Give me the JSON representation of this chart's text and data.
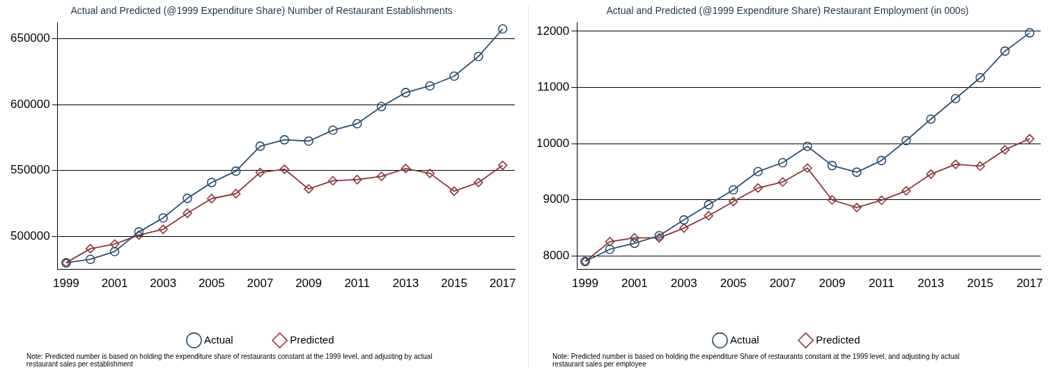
{
  "chart_data": [
    {
      "type": "line",
      "title": "Actual and Predicted (@1999 Expenditure Share) Number of Restaurant Establishments",
      "x": [
        1999,
        2000,
        2001,
        2002,
        2003,
        2004,
        2005,
        2006,
        2007,
        2008,
        2009,
        2010,
        2011,
        2012,
        2013,
        2014,
        2015,
        2016,
        2017
      ],
      "xlim": [
        1998.65,
        2017.5
      ],
      "xticks": [
        1999,
        2001,
        2003,
        2005,
        2007,
        2009,
        2011,
        2013,
        2015,
        2017
      ],
      "ylim": [
        475000,
        662000
      ],
      "yticks": [
        500000,
        550000,
        600000,
        650000
      ],
      "grid": "y",
      "legend": "bottom",
      "line_style": "solid",
      "series": [
        {
          "name": "Actual",
          "color": "#2b5073",
          "marker": "circle",
          "values": [
            480000,
            482600,
            488500,
            503400,
            514000,
            528900,
            540900,
            549500,
            568400,
            573300,
            572300,
            580600,
            585500,
            598500,
            609100,
            614200,
            621600,
            636500,
            657400
          ]
        },
        {
          "name": "Predicted",
          "color": "#90353b",
          "marker": "diamond",
          "values": [
            480000,
            490700,
            494100,
            501000,
            505400,
            517600,
            528700,
            532400,
            548500,
            551000,
            536000,
            542200,
            543100,
            545600,
            551500,
            547800,
            534300,
            540900,
            553900
          ]
        }
      ],
      "annotations": [
        "Note: Predicted number is based on holding the expenditure share of restaurants constant at the 1999 level, and adjusting by actual restaurant sales per establishment"
      ]
    },
    {
      "type": "line",
      "title": "Actual and Predicted (@1999 Expenditure Share) Restaurant Employment (in 000s)",
      "x": [
        1999,
        2000,
        2001,
        2002,
        2003,
        2004,
        2005,
        2006,
        2007,
        2008,
        2009,
        2010,
        2011,
        2012,
        2013,
        2014,
        2015,
        2016,
        2017
      ],
      "xlim": [
        1998.67,
        2017.45
      ],
      "xticks": [
        1999,
        2001,
        2003,
        2005,
        2007,
        2009,
        2011,
        2013,
        2015,
        2017
      ],
      "ylim": [
        7760,
        12150
      ],
      "yticks": [
        8000,
        9000,
        10000,
        11000,
        12000
      ],
      "grid": "y",
      "legend": "bottom",
      "line_style": "solid",
      "series": [
        {
          "name": "Actual",
          "color": "#2b5073",
          "marker": "circle",
          "values": [
            7900,
            8118,
            8225,
            8360,
            8641,
            8911,
            9176,
            9502,
            9660,
            9952,
            9609,
            9491,
            9699,
            10053,
            10436,
            10802,
            11173,
            11646,
            11972
          ]
        },
        {
          "name": "Predicted",
          "color": "#90353b",
          "marker": "diamond",
          "values": [
            7900,
            8253,
            8321,
            8321,
            8495,
            8714,
            8967,
            9209,
            9316,
            9564,
            8996,
            8861,
            8990,
            9159,
            9457,
            9631,
            9598,
            9890,
            10087
          ]
        }
      ],
      "annotations": [
        "Note: Predicted number is based on holding the expenditure Share of restaurants constant at the 1999 level, and adjusting by actual restaurant sales per employee"
      ]
    }
  ]
}
